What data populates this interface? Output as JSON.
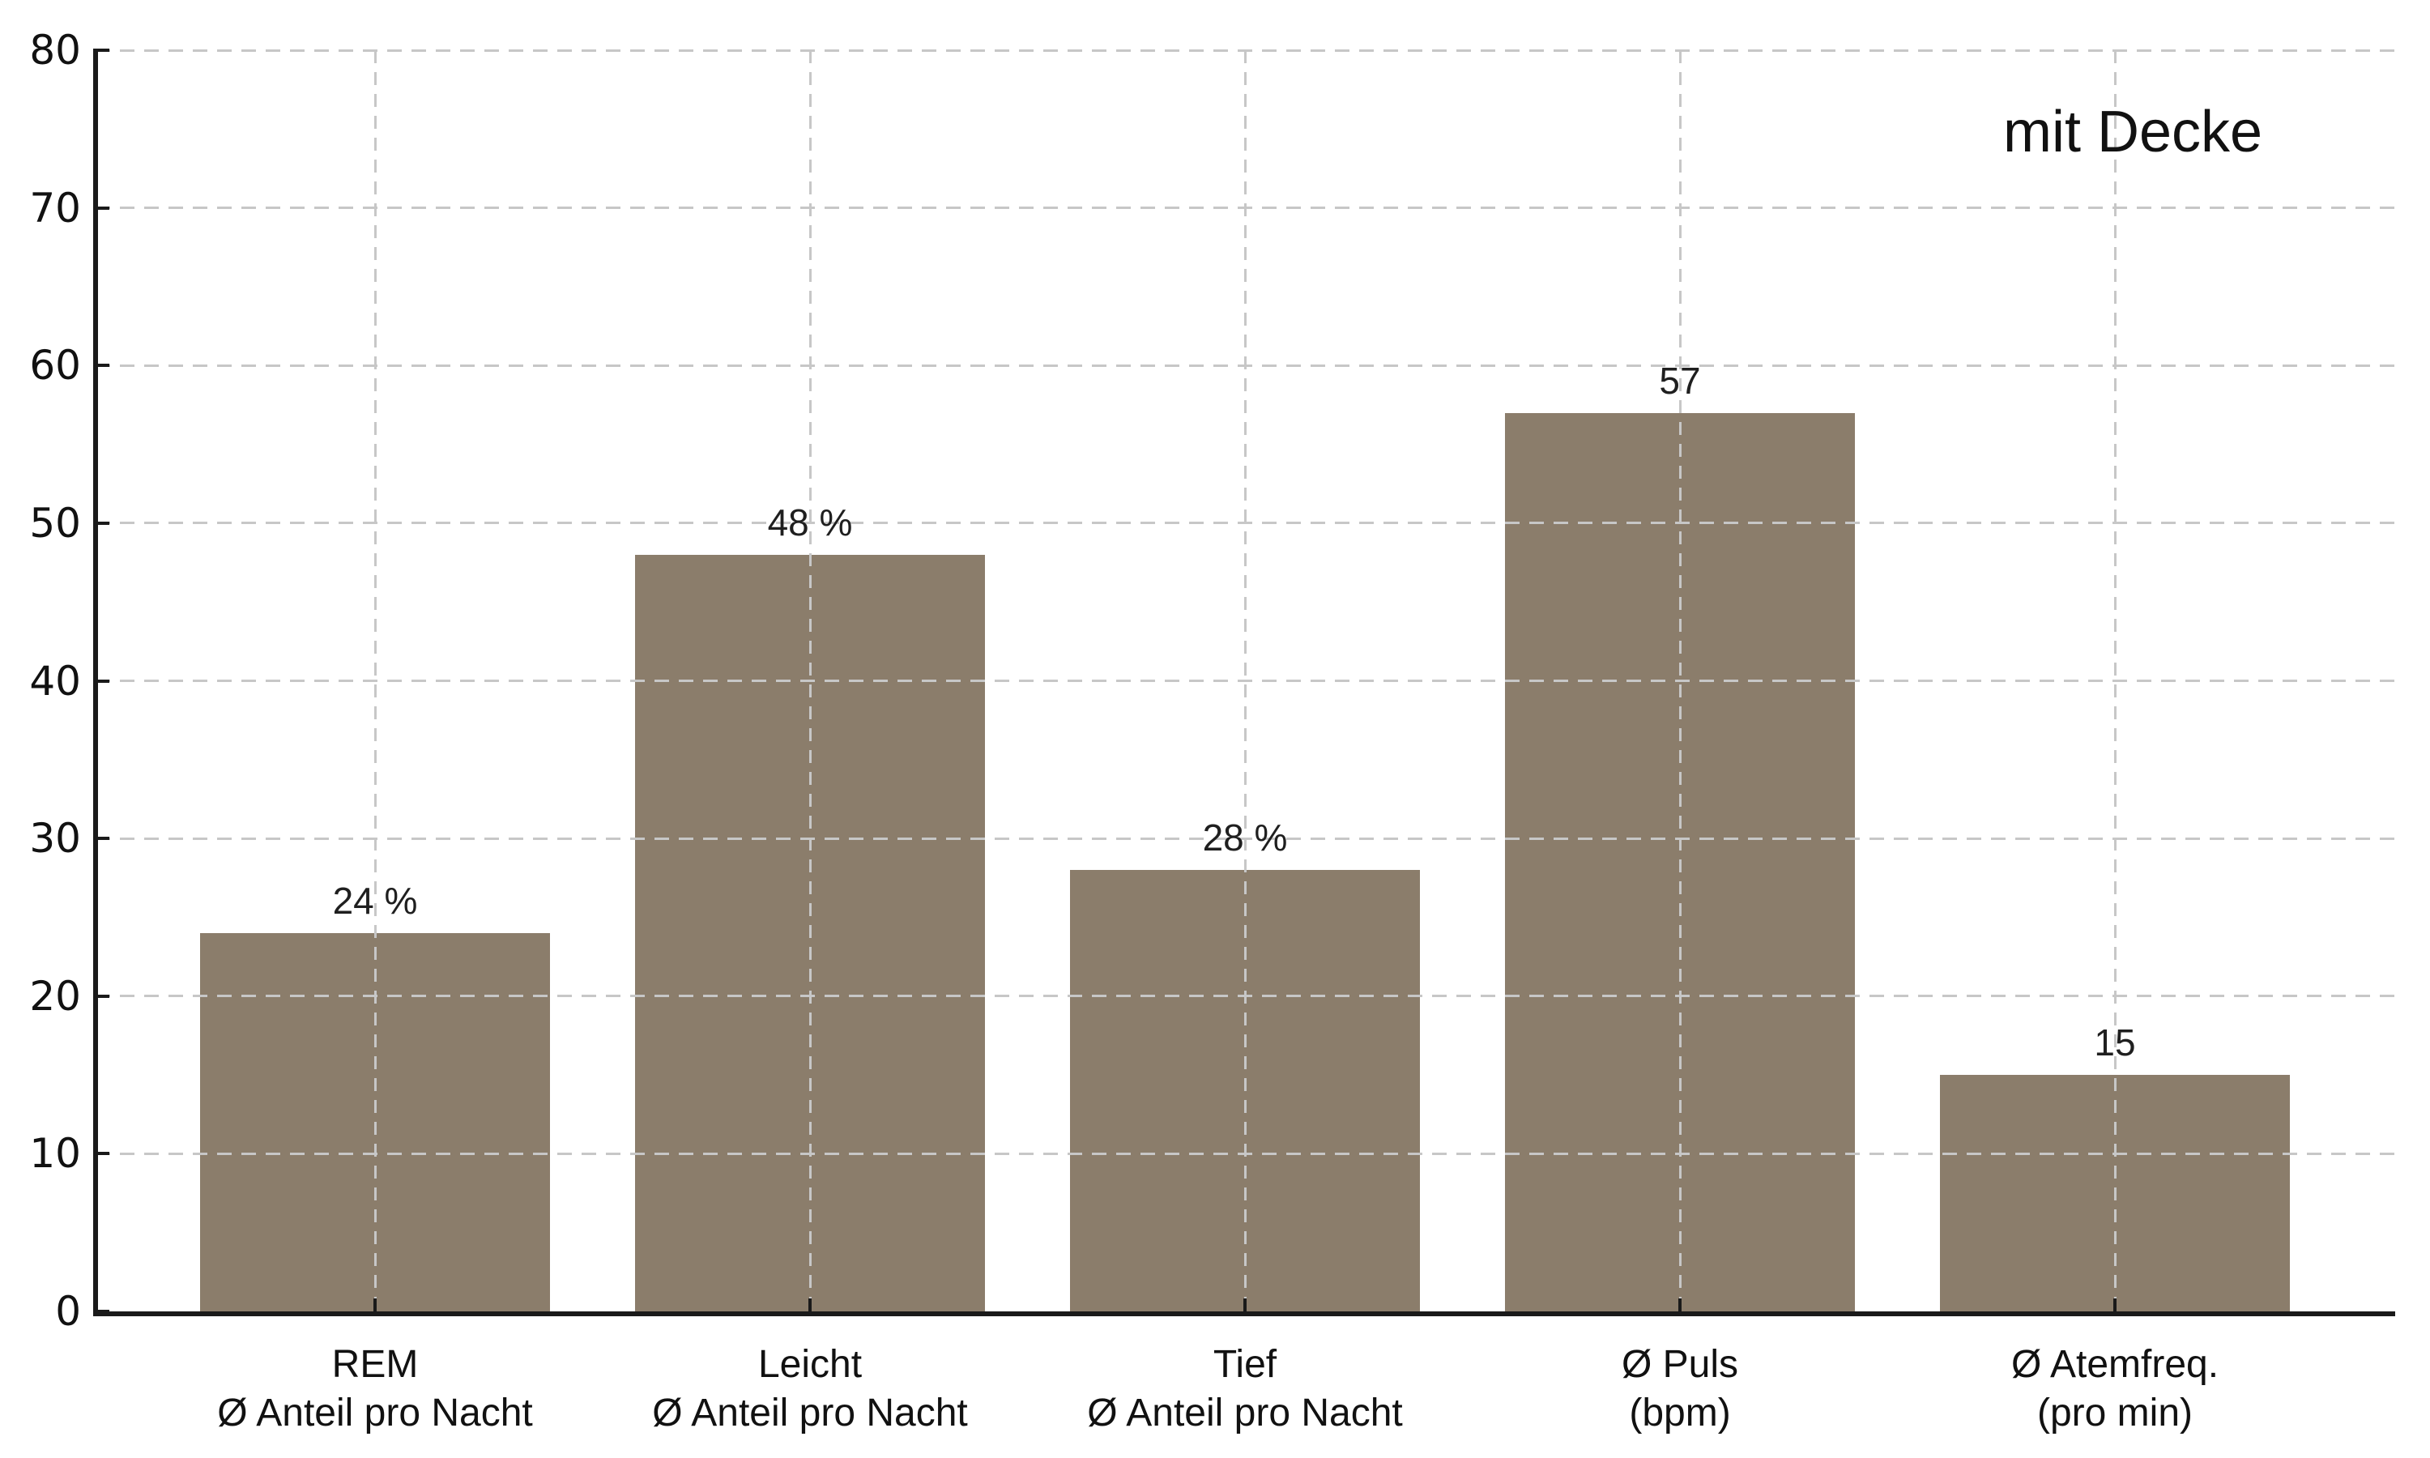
{
  "chart_data": {
    "type": "bar",
    "title": "",
    "annotation": "mit Decke",
    "categories": [
      [
        "REM",
        "Ø Anteil pro Nacht"
      ],
      [
        "Leicht",
        "Ø Anteil pro Nacht"
      ],
      [
        "Tief",
        "Ø Anteil pro Nacht"
      ],
      [
        "Ø Puls",
        "(bpm)"
      ],
      [
        "Ø Atemfreq.",
        "(pro min)"
      ]
    ],
    "values": [
      24,
      48,
      28,
      57,
      15
    ],
    "value_labels": [
      "24 %",
      "48 %",
      "28 %",
      "57",
      "15"
    ],
    "ylim": [
      0,
      80
    ],
    "yticks": [
      0,
      10,
      20,
      30,
      40,
      50,
      60,
      70,
      80
    ],
    "bar_color": "#8b7d6b",
    "grid_color": "#c7c7c7",
    "grid_style": "dashed",
    "legend_position": "top-right",
    "xlabel": "",
    "ylabel": ""
  }
}
